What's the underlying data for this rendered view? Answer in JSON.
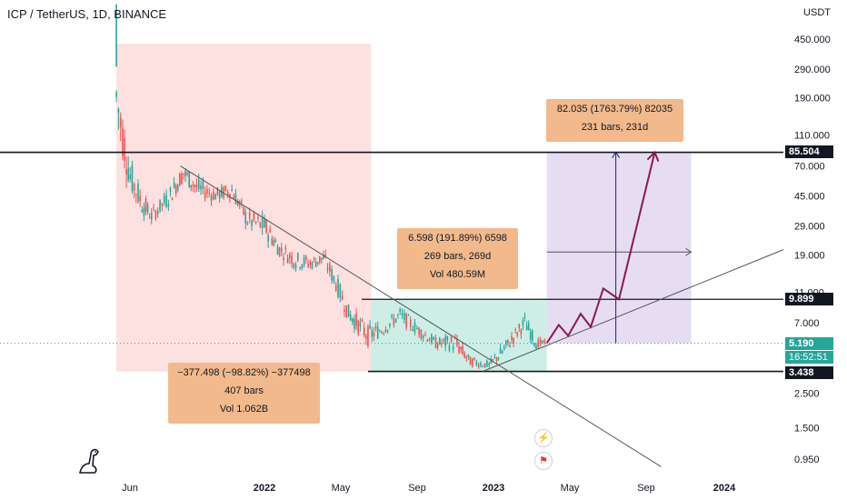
{
  "header": {
    "symbol_title": "ICP / TetherUS, 1D, BINANCE",
    "currency": "USDT"
  },
  "chart_data": {
    "type": "candlestick",
    "scale": "log",
    "y_ticks": [
      "450.000",
      "290.000",
      "190.000",
      "110.000",
      "70.000",
      "45.000",
      "29.000",
      "19.000",
      "11.000",
      "7.000",
      "2.500",
      "1.500",
      "0.950"
    ],
    "x_ticks": [
      {
        "label": "Jun",
        "bold": false
      },
      {
        "label": "2022",
        "bold": true
      },
      {
        "label": "May",
        "bold": false
      },
      {
        "label": "Sep",
        "bold": false
      },
      {
        "label": "2023",
        "bold": true
      },
      {
        "label": "May",
        "bold": false
      },
      {
        "label": "Sep",
        "bold": false
      },
      {
        "label": "2024",
        "bold": true
      }
    ],
    "price_path": [
      [
        "2021-05-10",
        420,
        90
      ],
      [
        "2021-05-20",
        200,
        60
      ],
      [
        "2021-06-01",
        90,
        40
      ],
      [
        "2021-06-20",
        55,
        30
      ],
      [
        "2021-07-05",
        40,
        28
      ],
      [
        "2021-08-01",
        55,
        35
      ],
      [
        "2021-08-25",
        80,
        50
      ],
      [
        "2021-09-15",
        65,
        40
      ],
      [
        "2021-10-15",
        55,
        38
      ],
      [
        "2021-11-10",
        60,
        40
      ],
      [
        "2021-12-05",
        40,
        25
      ],
      [
        "2022-01-01",
        38,
        22
      ],
      [
        "2022-01-25",
        25,
        17
      ],
      [
        "2022-02-20",
        22,
        14
      ],
      [
        "2022-03-15",
        20,
        14
      ],
      [
        "2022-04-05",
        22,
        15
      ],
      [
        "2022-04-25",
        16,
        10
      ],
      [
        "2022-05-15",
        10,
        6.5
      ],
      [
        "2022-06-15",
        7.5,
        4.5
      ],
      [
        "2022-07-10",
        7.5,
        5.5
      ],
      [
        "2022-08-05",
        9.5,
        6.5
      ],
      [
        "2022-09-01",
        7.5,
        5.5
      ],
      [
        "2022-10-01",
        6,
        4.5
      ],
      [
        "2022-11-01",
        6.5,
        4.2
      ],
      [
        "2022-11-25",
        4.5,
        3.5
      ],
      [
        "2022-12-25",
        4.2,
        3.4
      ],
      [
        "2023-01-15",
        5.5,
        3.8
      ],
      [
        "2023-02-05",
        7,
        5
      ],
      [
        "2023-02-20",
        8.5,
        5.8
      ],
      [
        "2023-03-10",
        6,
        4.5
      ],
      [
        "2023-03-27",
        5.5,
        5.0
      ]
    ],
    "last_price": "5.190",
    "countdown": "16:52:51",
    "levels": [
      {
        "name": "resistance-top",
        "value": "85.504"
      },
      {
        "name": "range-high",
        "value": "9.899"
      },
      {
        "name": "range-low",
        "value": "3.438"
      }
    ],
    "annotations": {
      "drop": {
        "line1": "−377.498 (−98.82%) −377498",
        "line2": "407 bars",
        "line3": "Vol 1.062B"
      },
      "range": {
        "line1": "6.598 (191.89%) 6598",
        "line2": "269 bars, 269d",
        "line3": "Vol 480.59M"
      },
      "target": {
        "line1": "82.035 (1763.79%) 82035",
        "line2": "231 bars, 231d"
      }
    },
    "colors": {
      "up": "#26a69a",
      "down": "#ef5350",
      "drop_zone": "#fde0e0",
      "range_zone": "#cdeee6",
      "target_zone": "#e6ddf3",
      "projection": "#8b1a4a",
      "measure": "#1a237e"
    }
  }
}
